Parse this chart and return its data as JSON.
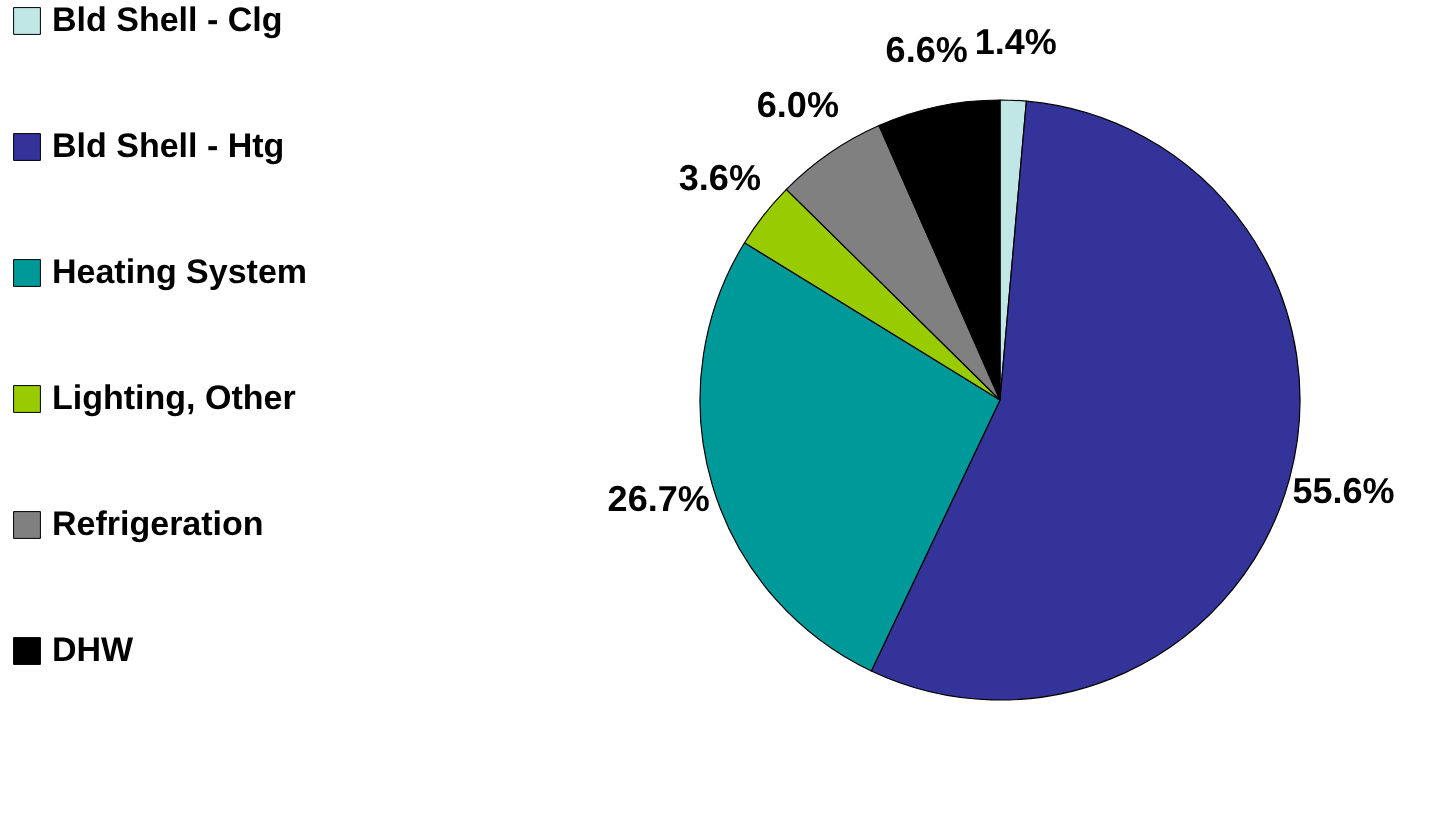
{
  "chart_data": {
    "type": "pie",
    "categories": [
      "Bld Shell - Clg",
      "Bld Shell - Htg",
      "Heating System",
      "Lighting, Other",
      "Refrigeration",
      "DHW"
    ],
    "values": [
      1.4,
      55.6,
      26.7,
      3.6,
      6.0,
      6.6
    ],
    "colors": [
      "#c0e6e6",
      "#333399",
      "#009999",
      "#99cc00",
      "#808080",
      "#000000"
    ],
    "value_labels": [
      "1.4%",
      "55.6%",
      "26.7%",
      "3.6%",
      "6.0%",
      "6.6%"
    ],
    "legend": "left"
  }
}
